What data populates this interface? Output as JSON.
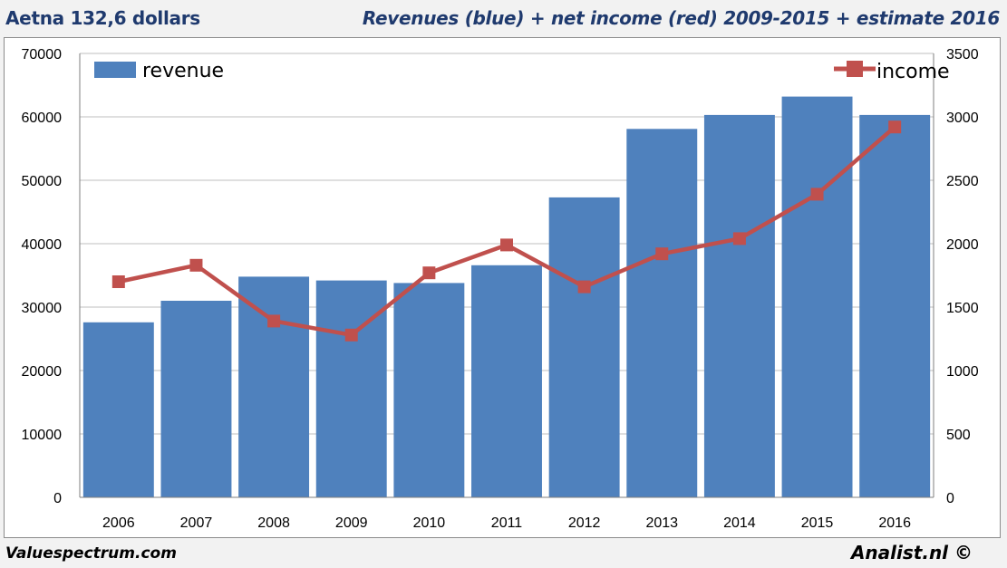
{
  "header": {
    "left_title": "Aetna 132,6 dollars",
    "right_title": "Revenues (blue) + net income (red) 2009-2015 + estimate 2016"
  },
  "footer": {
    "left": "Valuespectrum.com",
    "right": "Analist.nl ©"
  },
  "colors": {
    "bar": "#4f81bd",
    "line": "#c0504d",
    "grid": "#bfbfbf"
  },
  "chart_data": {
    "type": "bar",
    "categories": [
      "2006",
      "2007",
      "2008",
      "2009",
      "2010",
      "2011",
      "2012",
      "2013",
      "2014",
      "2015",
      "2016"
    ],
    "series": [
      {
        "name": "revenue",
        "type": "bar",
        "axis": "left",
        "values": [
          27600,
          31000,
          34800,
          34200,
          33800,
          36600,
          47300,
          58100,
          60300,
          63200,
          60300
        ]
      },
      {
        "name": "income",
        "type": "line",
        "axis": "right",
        "values": [
          1700,
          1830,
          1390,
          1280,
          1770,
          1990,
          1660,
          1920,
          2040,
          2390,
          2920
        ]
      }
    ],
    "ylim_left": [
      0,
      70000
    ],
    "yticks_left": [
      "0",
      "10000",
      "20000",
      "30000",
      "40000",
      "50000",
      "60000",
      "70000"
    ],
    "ylim_right": [
      0,
      3500
    ],
    "yticks_right": [
      "0",
      "500",
      "1000",
      "1500",
      "2000",
      "2500",
      "3000",
      "3500"
    ],
    "grid": true,
    "legend": [
      {
        "label": "revenue",
        "placement": "top-left"
      },
      {
        "label": "income",
        "placement": "top-right"
      }
    ]
  }
}
